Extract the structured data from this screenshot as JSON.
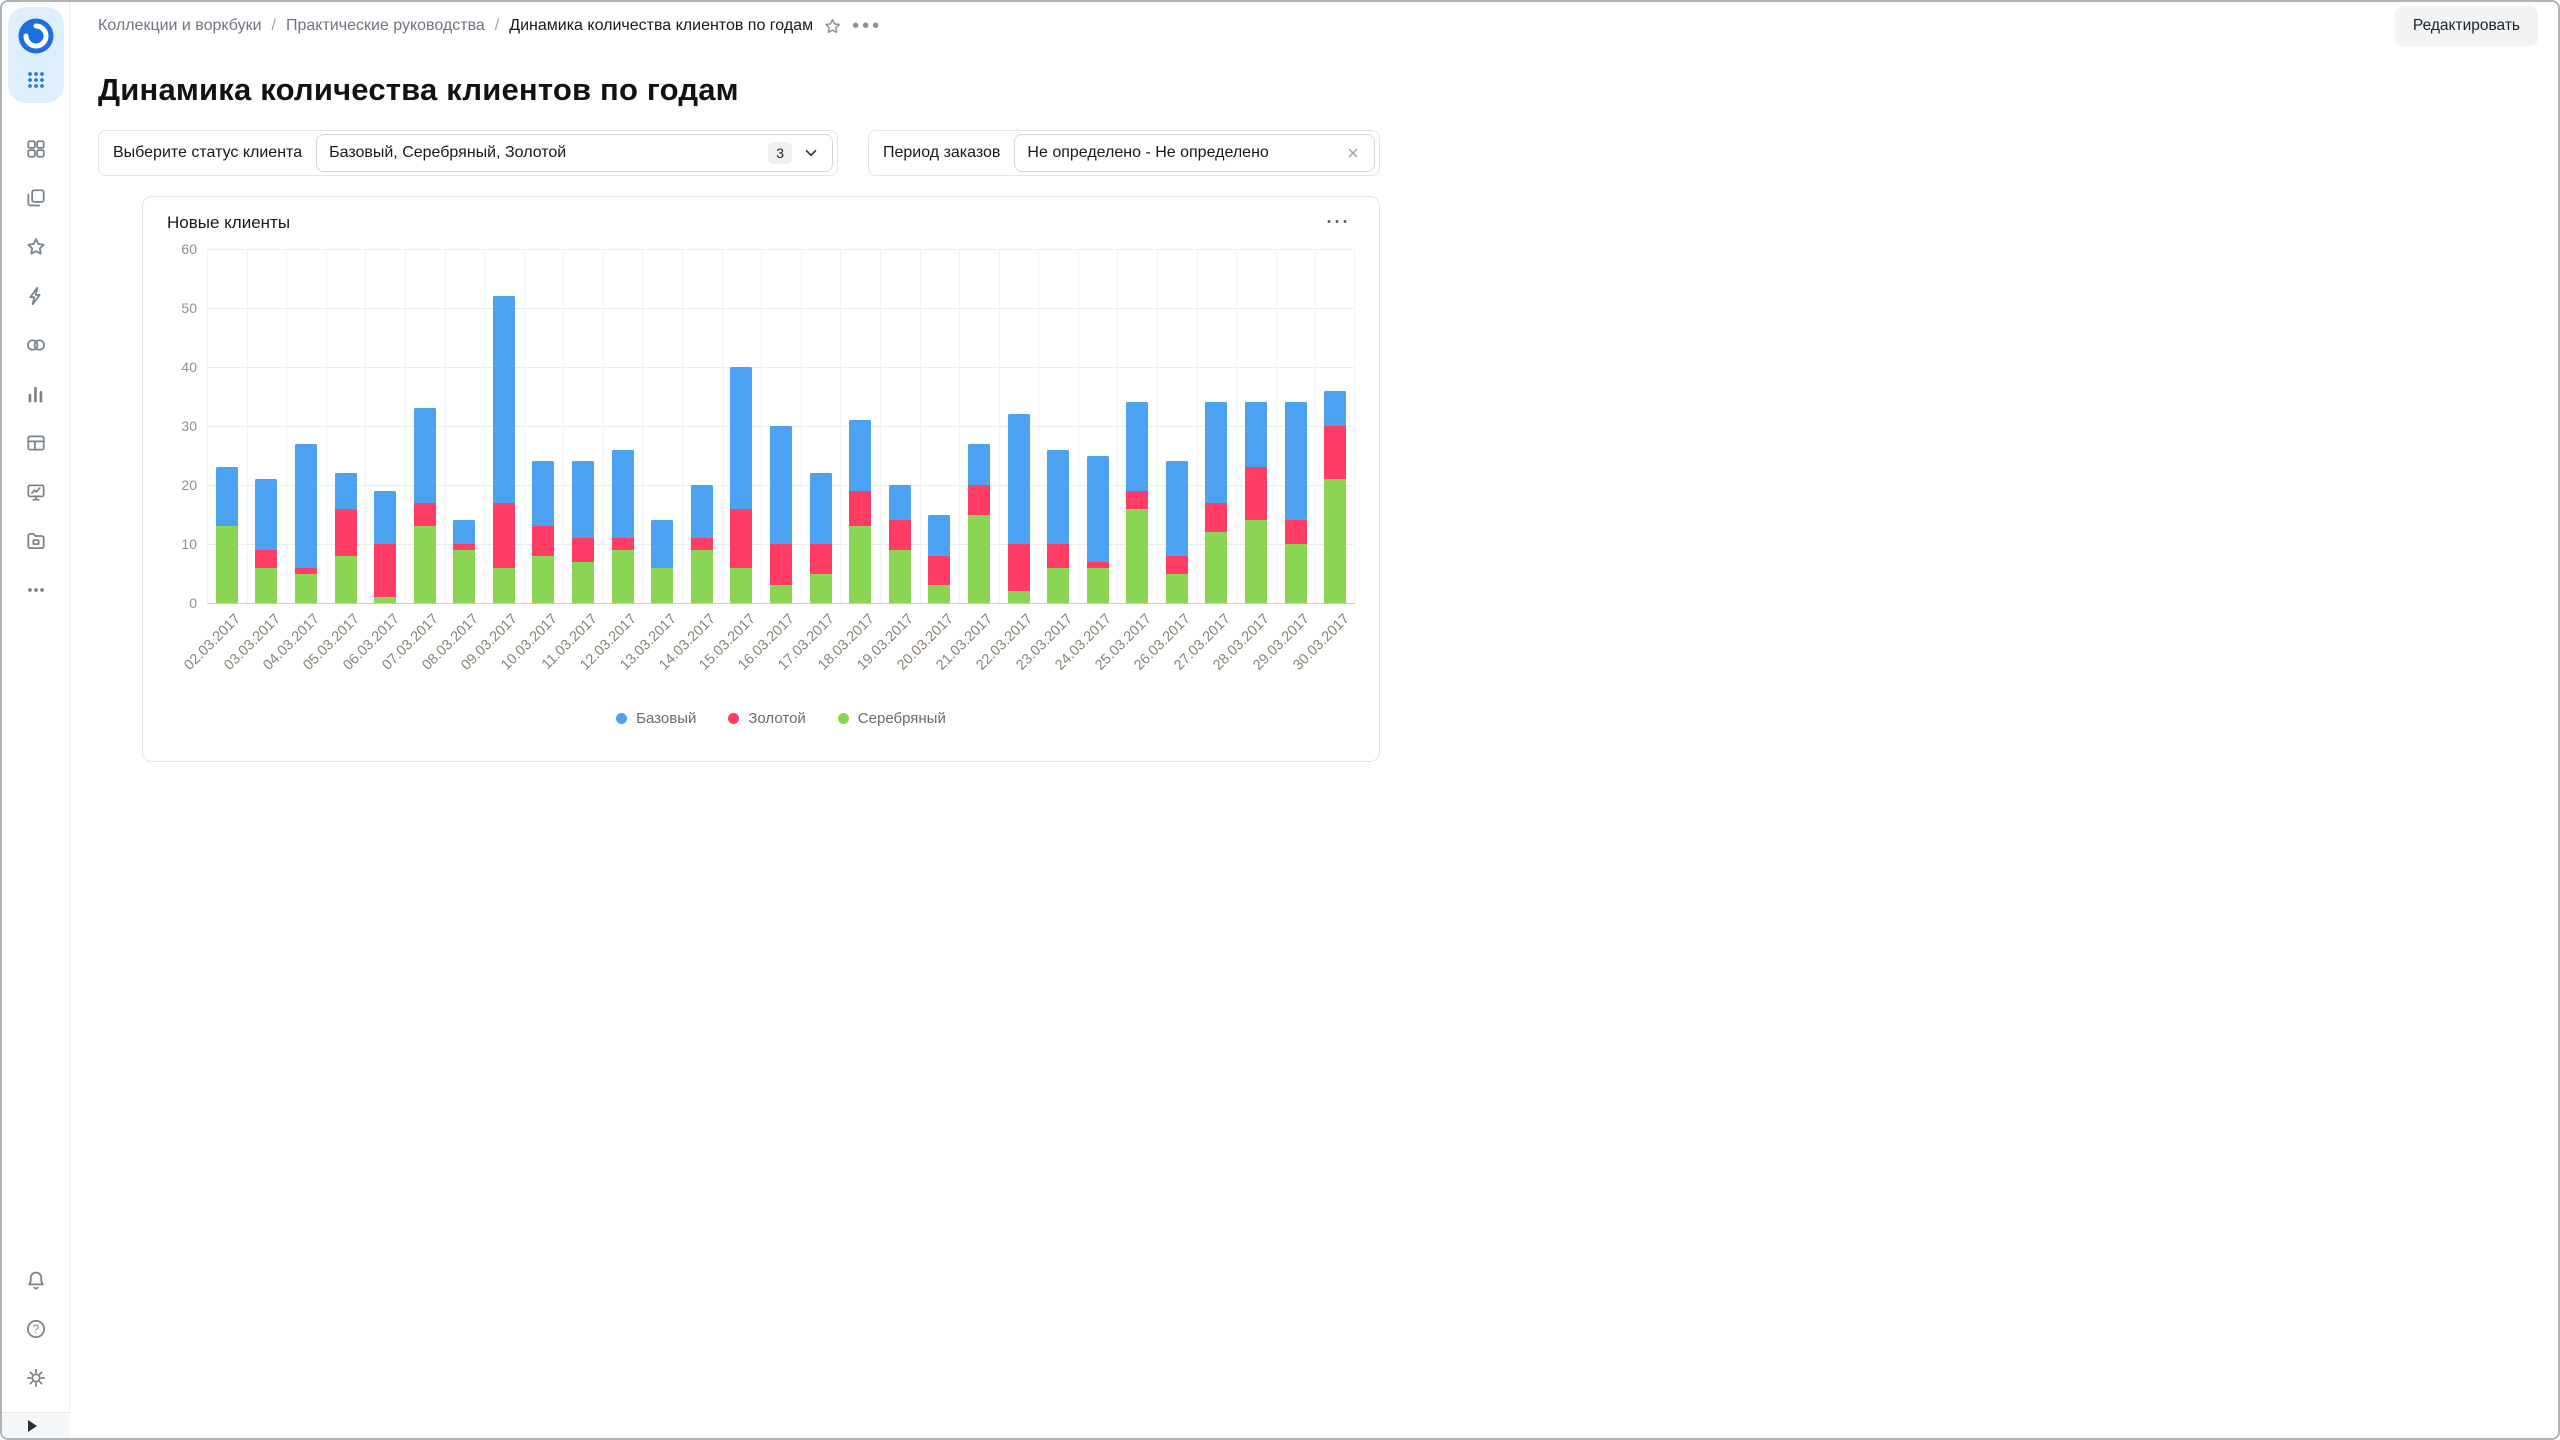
{
  "header": {
    "breadcrumbs": [
      "Коллекции и воркбуки",
      "Практические руководства",
      "Динамика количества клиентов по годам"
    ],
    "separator": "/",
    "edit_button": "Редактировать"
  },
  "page": {
    "title": "Динамика количества клиентов по годам"
  },
  "filters": {
    "status_label": "Выберите статус клиента",
    "status_value": "Базовый, Серебряный, Золотой",
    "status_count": "3",
    "period_label": "Период заказов",
    "period_value": "Не определено - Не определено"
  },
  "chart_card": {
    "title": "Новые клиенты",
    "menu": "⋯"
  },
  "chart_data": {
    "type": "bar",
    "stacked": true,
    "title": "Новые клиенты",
    "categories": [
      "02.03.2017",
      "03.03.2017",
      "04.03.2017",
      "05.03.2017",
      "06.03.2017",
      "07.03.2017",
      "08.03.2017",
      "09.03.2017",
      "10.03.2017",
      "11.03.2017",
      "12.03.2017",
      "13.03.2017",
      "14.03.2017",
      "15.03.2017",
      "16.03.2017",
      "17.03.2017",
      "18.03.2017",
      "19.03.2017",
      "20.03.2017",
      "21.03.2017",
      "22.03.2017",
      "23.03.2017",
      "24.03.2017",
      "25.03.2017",
      "26.03.2017",
      "27.03.2017",
      "28.03.2017",
      "29.03.2017",
      "30.03.2017"
    ],
    "series": [
      {
        "name": "Серебряный",
        "color": "#8AD554",
        "values": [
          13,
          6,
          5,
          8,
          1,
          13,
          9,
          6,
          8,
          7,
          9,
          6,
          9,
          6,
          3,
          5,
          13,
          9,
          3,
          15,
          2,
          6,
          6,
          16,
          5,
          12,
          14,
          10,
          21
        ]
      },
      {
        "name": "Золотой",
        "color": "#FF3D64",
        "values": [
          0,
          3,
          1,
          8,
          9,
          4,
          1,
          11,
          5,
          4,
          2,
          0,
          2,
          10,
          7,
          5,
          6,
          5,
          5,
          5,
          8,
          4,
          1,
          3,
          3,
          5,
          9,
          4,
          9
        ]
      },
      {
        "name": "Базовый",
        "color": "#4BA2F0",
        "values": [
          10,
          12,
          21,
          6,
          9,
          16,
          4,
          35,
          11,
          13,
          15,
          8,
          9,
          24,
          20,
          12,
          12,
          6,
          7,
          7,
          22,
          16,
          18,
          15,
          16,
          17,
          11,
          20,
          6
        ]
      }
    ],
    "legend_order": [
      "Базовый",
      "Золотой",
      "Серебряный"
    ],
    "ylim": [
      0,
      60
    ],
    "yticks": [
      0,
      10,
      20,
      30,
      40,
      50,
      60
    ],
    "grid": true,
    "legend_position": "bottom",
    "xlabel": "",
    "ylabel": ""
  }
}
